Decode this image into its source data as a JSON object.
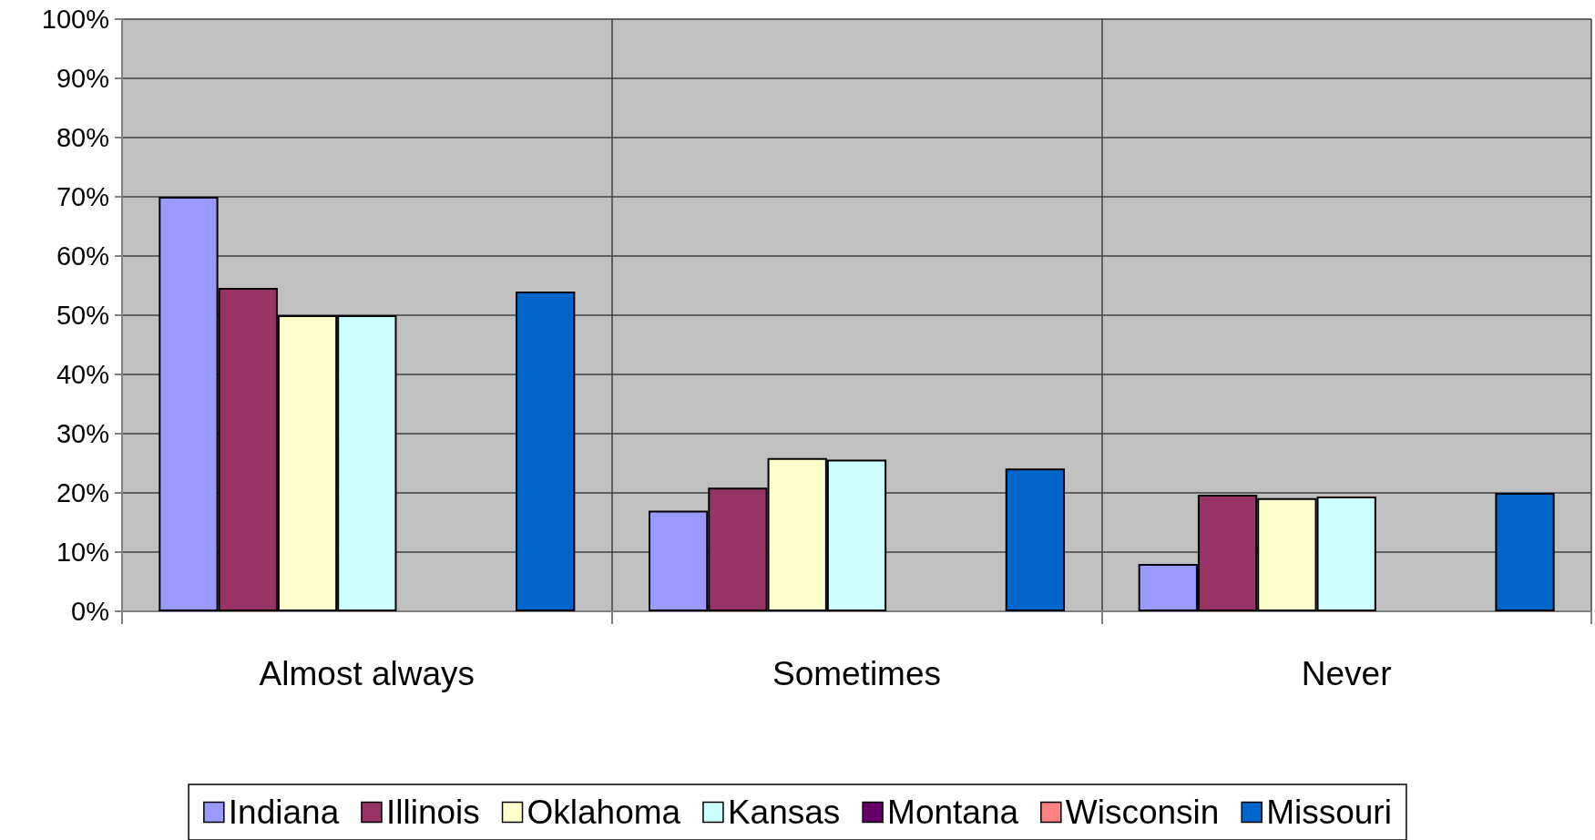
{
  "chart_data": {
    "type": "bar",
    "categories": [
      "Almost always",
      "Sometimes",
      "Never"
    ],
    "series": [
      {
        "name": "Indiana",
        "color": "#9999ff",
        "values": [
          70,
          17.0,
          8.0
        ]
      },
      {
        "name": "Illinois",
        "color": "#993366",
        "values": [
          54.6,
          20.9,
          19.7
        ]
      },
      {
        "name": "Oklahoma",
        "color": "#ffffcc",
        "values": [
          50,
          25.9,
          19.1
        ]
      },
      {
        "name": "Kansas",
        "color": "#ccffff",
        "values": [
          50,
          25.6,
          19.4
        ]
      },
      {
        "name": "Montana",
        "color": "#660066",
        "values": [
          null,
          null,
          null
        ]
      },
      {
        "name": "Wisconsin",
        "color": "#ff8080",
        "values": [
          null,
          null,
          null
        ]
      },
      {
        "name": "Missouri",
        "color": "#0066cc",
        "values": [
          54.0,
          24.1,
          20.0
        ]
      }
    ],
    "ylim": [
      0,
      100
    ],
    "yticks": [
      {
        "value": 0,
        "label": "0%"
      },
      {
        "value": 10,
        "label": "10%"
      },
      {
        "value": 20,
        "label": "20%"
      },
      {
        "value": 30,
        "label": "30%"
      },
      {
        "value": 40,
        "label": "40%"
      },
      {
        "value": 50,
        "label": "50%"
      },
      {
        "value": 60,
        "label": "60%"
      },
      {
        "value": 70,
        "label": "70%"
      },
      {
        "value": 80,
        "label": "80%"
      },
      {
        "value": 90,
        "label": "90%"
      },
      {
        "value": 100,
        "label": "100%"
      }
    ],
    "grid": true,
    "legend": "bottom"
  }
}
